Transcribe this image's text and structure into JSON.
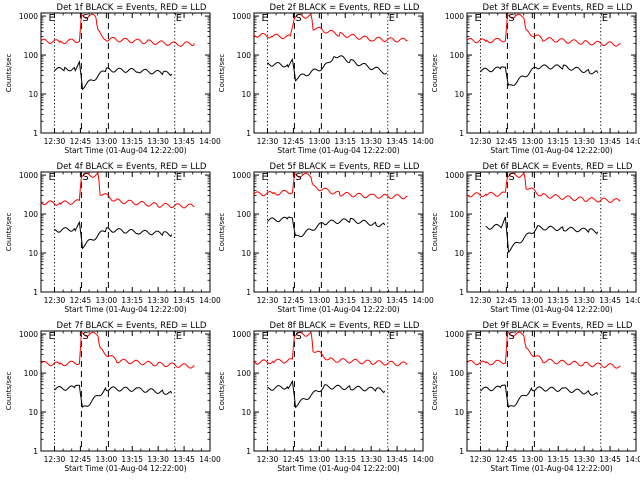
{
  "chart_data": [
    {
      "type": "line",
      "title": "Det 1f BLACK = Events, RED = LLD",
      "xlabel": "Start Time (01-Aug-04 12:22:00)",
      "ylabel": "Counts/sec",
      "series": [
        {
          "color": "#ff0000",
          "points": [
            [
              12.37,
              230
            ],
            [
              12.56,
              220
            ],
            [
              12.74,
              240
            ],
            [
              12.76,
              1000
            ],
            [
              12.9,
              1000
            ],
            [
              12.92,
              400
            ],
            [
              13.0,
              260
            ],
            [
              13.4,
              220
            ],
            [
              13.7,
              190
            ],
            [
              13.85,
              200
            ]
          ]
        },
        {
          "color": "#000000",
          "points": [
            [
              12.5,
              42
            ],
            [
              12.6,
              44
            ],
            [
              12.7,
              45
            ],
            [
              12.74,
              60
            ],
            [
              12.77,
              15
            ],
            [
              13.0,
              42
            ],
            [
              13.3,
              40
            ],
            [
              13.55,
              35
            ],
            [
              13.63,
              33
            ]
          ]
        }
      ]
    },
    {
      "type": "line",
      "title": "Det 2f BLACK = Events, RED = LLD",
      "xlabel": "Start Time (01-Aug-04 12:22:00)",
      "ylabel": "Counts/sec",
      "series": [
        {
          "color": "#ff0000",
          "points": [
            [
              12.37,
              330
            ],
            [
              12.55,
              310
            ],
            [
              12.72,
              290
            ],
            [
              12.76,
              1000
            ],
            [
              12.92,
              1000
            ],
            [
              12.94,
              500
            ],
            [
              13.2,
              340
            ],
            [
              13.5,
              260
            ],
            [
              13.85,
              240
            ]
          ]
        },
        {
          "color": "#000000",
          "points": [
            [
              12.5,
              60
            ],
            [
              12.7,
              55
            ],
            [
              12.74,
              70
            ],
            [
              12.77,
              25
            ],
            [
              13.05,
              50
            ],
            [
              13.15,
              100
            ],
            [
              13.3,
              70
            ],
            [
              13.6,
              40
            ],
            [
              13.65,
              35
            ]
          ]
        }
      ]
    },
    {
      "type": "line",
      "title": "Det 3f BLACK = Events, RED = LLD",
      "xlabel": "Start Time (01-Aug-04 12:22:00)",
      "ylabel": "Counts/sec",
      "series": [
        {
          "color": "#ff0000",
          "points": [
            [
              12.37,
              240
            ],
            [
              12.56,
              230
            ],
            [
              12.74,
              250
            ],
            [
              12.76,
              1000
            ],
            [
              12.92,
              1000
            ],
            [
              12.94,
              400
            ],
            [
              13.1,
              260
            ],
            [
              13.5,
              210
            ],
            [
              13.85,
              190
            ]
          ]
        },
        {
          "color": "#000000",
          "points": [
            [
              12.5,
              40
            ],
            [
              12.7,
              45
            ],
            [
              12.74,
              55
            ],
            [
              12.77,
              15
            ],
            [
              13.05,
              50
            ],
            [
              13.3,
              50
            ],
            [
              13.55,
              38
            ],
            [
              13.63,
              35
            ]
          ]
        }
      ]
    },
    {
      "type": "line",
      "title": "Det 4f BLACK = Events, RED = LLD",
      "xlabel": "Start Time (01-Aug-04 12:22:00)",
      "ylabel": "Counts/sec",
      "series": [
        {
          "color": "#ff0000",
          "points": [
            [
              12.37,
              200
            ],
            [
              12.56,
              190
            ],
            [
              12.74,
              210
            ],
            [
              12.76,
              1000
            ],
            [
              12.92,
              1000
            ],
            [
              12.94,
              350
            ],
            [
              13.1,
              220
            ],
            [
              13.5,
              170
            ],
            [
              13.85,
              160
            ]
          ]
        },
        {
          "color": "#000000",
          "points": [
            [
              12.5,
              38
            ],
            [
              12.7,
              42
            ],
            [
              12.74,
              55
            ],
            [
              12.77,
              15
            ],
            [
              13.0,
              40
            ],
            [
              13.3,
              35
            ],
            [
              13.55,
              32
            ],
            [
              13.63,
              30
            ]
          ]
        }
      ]
    },
    {
      "type": "line",
      "title": "Det 5f BLACK = Events, RED = LLD",
      "xlabel": "Start Time (01-Aug-04 12:22:00)",
      "ylabel": "Counts/sec",
      "series": [
        {
          "color": "#ff0000",
          "points": [
            [
              12.37,
              330
            ],
            [
              12.56,
              340
            ],
            [
              12.74,
              380
            ],
            [
              12.76,
              1000
            ],
            [
              12.92,
              1000
            ],
            [
              12.94,
              500
            ],
            [
              13.2,
              330
            ],
            [
              13.5,
              290
            ],
            [
              13.85,
              280
            ]
          ]
        },
        {
          "color": "#000000",
          "points": [
            [
              12.5,
              70
            ],
            [
              12.7,
              75
            ],
            [
              12.74,
              90
            ],
            [
              12.77,
              25
            ],
            [
              13.05,
              60
            ],
            [
              13.3,
              70
            ],
            [
              13.55,
              55
            ],
            [
              13.63,
              52
            ]
          ]
        }
      ]
    },
    {
      "type": "line",
      "title": "Det 6f BLACK = Events, RED = LLD",
      "xlabel": "Start Time (01-Aug-04 12:22:00)",
      "ylabel": "Counts/sec",
      "series": [
        {
          "color": "#ff0000",
          "points": [
            [
              12.37,
              310
            ],
            [
              12.56,
              320
            ],
            [
              12.74,
              330
            ],
            [
              12.76,
              1000
            ],
            [
              12.92,
              1000
            ],
            [
              12.94,
              500
            ],
            [
              13.1,
              300
            ],
            [
              13.5,
              240
            ],
            [
              13.85,
              220
            ]
          ]
        },
        {
          "color": "#000000",
          "points": [
            [
              12.55,
              45
            ],
            [
              12.7,
              50
            ],
            [
              12.74,
              75
            ],
            [
              12.77,
              12
            ],
            [
              13.05,
              45
            ],
            [
              13.3,
              42
            ],
            [
              13.55,
              38
            ],
            [
              13.63,
              35
            ]
          ]
        }
      ]
    },
    {
      "type": "line",
      "title": "Det 7f BLACK = Events, RED = LLD",
      "xlabel": "Start Time (01-Aug-04 12:22:00)",
      "ylabel": "Counts/sec",
      "series": [
        {
          "color": "#ff0000",
          "points": [
            [
              12.37,
              180
            ],
            [
              12.56,
              170
            ],
            [
              12.74,
              190
            ],
            [
              12.76,
              1000
            ],
            [
              12.92,
              1000
            ],
            [
              12.94,
              400
            ],
            [
              13.1,
              210
            ],
            [
              13.5,
              170
            ],
            [
              13.85,
              150
            ]
          ]
        },
        {
          "color": "#000000",
          "points": [
            [
              12.5,
              40
            ],
            [
              12.7,
              42
            ],
            [
              12.74,
              55
            ],
            [
              12.77,
              12
            ],
            [
              13.0,
              40
            ],
            [
              13.3,
              38
            ],
            [
              13.55,
              33
            ],
            [
              13.63,
              30
            ]
          ]
        }
      ]
    },
    {
      "type": "line",
      "title": "Det 8f BLACK = Events, RED = LLD",
      "xlabel": "Start Time (01-Aug-04 12:22:00)",
      "ylabel": "Counts/sec",
      "series": [
        {
          "color": "#ff0000",
          "points": [
            [
              12.37,
              190
            ],
            [
              12.56,
              200
            ],
            [
              12.74,
              210
            ],
            [
              12.76,
              1000
            ],
            [
              12.92,
              1000
            ],
            [
              12.94,
              400
            ],
            [
              13.1,
              220
            ],
            [
              13.5,
              190
            ],
            [
              13.85,
              170
            ]
          ]
        },
        {
          "color": "#000000",
          "points": [
            [
              12.5,
              40
            ],
            [
              12.7,
              45
            ],
            [
              12.74,
              55
            ],
            [
              12.77,
              15
            ],
            [
              13.05,
              45
            ],
            [
              13.3,
              42
            ],
            [
              13.55,
              38
            ],
            [
              13.63,
              35
            ]
          ]
        }
      ]
    },
    {
      "type": "line",
      "title": "Det 9f BLACK = Events, RED = LLD",
      "xlabel": "Start Time (01-Aug-04 12:22:00)",
      "ylabel": "Counts/sec",
      "series": [
        {
          "color": "#ff0000",
          "points": [
            [
              12.37,
              190
            ],
            [
              12.56,
              180
            ],
            [
              12.74,
              200
            ],
            [
              12.76,
              1000
            ],
            [
              12.92,
              1000
            ],
            [
              12.94,
              400
            ],
            [
              13.1,
              210
            ],
            [
              13.5,
              170
            ],
            [
              13.85,
              150
            ]
          ]
        },
        {
          "color": "#000000",
          "points": [
            [
              12.5,
              38
            ],
            [
              12.7,
              42
            ],
            [
              12.74,
              55
            ],
            [
              12.77,
              12
            ],
            [
              13.0,
              40
            ],
            [
              13.3,
              38
            ],
            [
              13.55,
              32
            ],
            [
              13.63,
              28
            ]
          ]
        }
      ]
    }
  ],
  "axes": {
    "x_tick_labels": [
      "12:30",
      "12:45",
      "13:00",
      "13:15",
      "13:30",
      "13:45",
      "14:00"
    ],
    "x_tick_values": [
      12.5,
      12.75,
      13.0,
      13.25,
      13.5,
      13.75,
      14.0
    ],
    "xlim": [
      12.37,
      14.0
    ],
    "y_tick_labels": [
      "1",
      "10",
      "100",
      "1000"
    ],
    "y_tick_values": [
      1,
      10,
      100,
      1000
    ],
    "ylim": [
      1,
      1200
    ],
    "scale_y": "log",
    "marker_labels": {
      "E": "E",
      "S": "S"
    },
    "dotted_lines": [
      12.5,
      13.66
    ],
    "dashed_lines": [
      12.76,
      13.02
    ]
  }
}
